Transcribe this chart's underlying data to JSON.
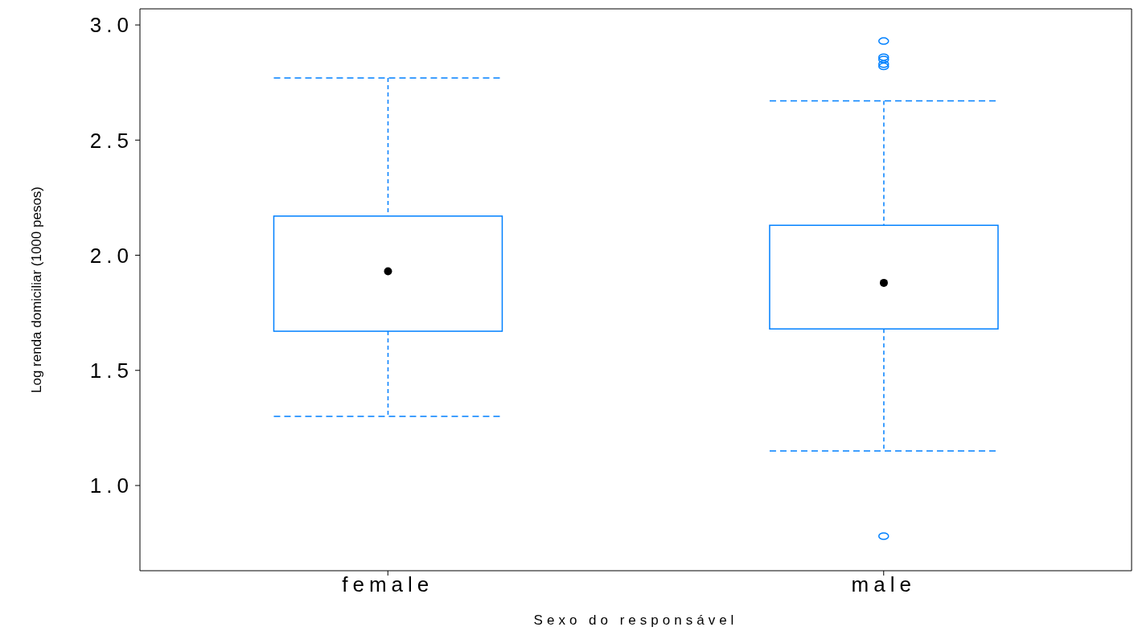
{
  "chart_data": {
    "type": "box",
    "xlabel": "Sexo do responsável",
    "ylabel": "Log renda domiciliar (1000 pesos)",
    "categories": [
      "female",
      "male"
    ],
    "ylim": [
      0.63,
      3.07
    ],
    "yticks": [
      {
        "value": 1,
        "label": "1.0"
      },
      {
        "value": 1.5,
        "label": "1.5"
      },
      {
        "value": 2,
        "label": "2.0"
      },
      {
        "value": 2.5,
        "label": "2.5"
      },
      {
        "value": 3,
        "label": "3.0"
      }
    ],
    "series": [
      {
        "color": "#0080ff",
        "boxes": [
          {
            "low": 1.3,
            "q1": 1.67,
            "median": 1.93,
            "q3": 2.17,
            "high": 2.77
          },
          {
            "low": 1.15,
            "q1": 1.68,
            "median": 1.88,
            "q3": 2.13,
            "high": 2.67,
            "outliers": [
              2.93,
              2.86,
              2.85,
              2.83,
              2.82,
              0.78
            ]
          }
        ]
      }
    ]
  }
}
